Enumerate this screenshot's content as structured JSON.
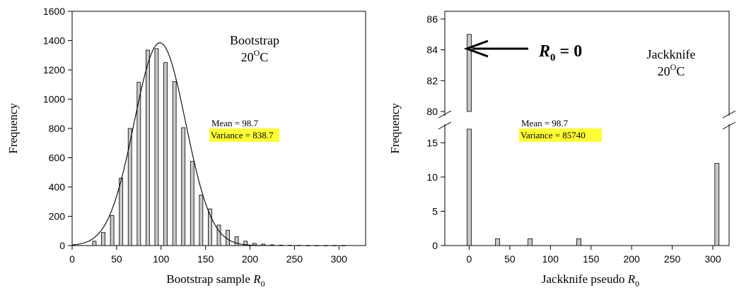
{
  "chart_data": [
    {
      "type": "bar",
      "panel": "bootstrap",
      "annotation_title": "Bootstrap",
      "annotation_temp": "20",
      "annotation_temp_sup": "O",
      "annotation_temp_unit": "C",
      "xlabel": "Bootstrap sample ",
      "xlabel_var": "R",
      "xlabel_sub": "0",
      "ylabel": "Frequency",
      "xlim": [
        0,
        330
      ],
      "ylim": [
        0,
        1600
      ],
      "xticks": [
        0,
        50,
        100,
        150,
        200,
        250,
        300
      ],
      "yticks": [
        0,
        200,
        400,
        600,
        800,
        1000,
        1200,
        1400,
        1600
      ],
      "x": [
        25,
        35,
        45,
        55,
        65,
        75,
        85,
        95,
        105,
        115,
        125,
        135,
        145,
        155,
        165,
        175,
        185,
        195,
        205,
        215,
        225,
        235,
        245,
        255,
        265,
        275,
        285,
        295,
        305
      ],
      "values": [
        30,
        90,
        205,
        460,
        800,
        1115,
        1335,
        1345,
        1250,
        1120,
        805,
        575,
        345,
        250,
        140,
        105,
        60,
        30,
        15,
        10,
        5,
        3,
        2,
        2,
        1,
        1,
        1,
        1,
        1
      ],
      "fit_curve": {
        "type": "normal",
        "mean": 98.7,
        "sd": 28.96,
        "peak": 1385
      },
      "stats": {
        "mean": "Mean = 98.7",
        "variance": "Variance = 838.7"
      }
    },
    {
      "type": "bar",
      "panel": "jackknife",
      "annotation_title": "Jackknife",
      "annotation_temp": "20",
      "annotation_temp_sup": "O",
      "annotation_temp_unit": "C",
      "arrow_label_var": "R",
      "arrow_label_sub": "0",
      "arrow_label_rest": " = 0",
      "xlabel": "Jackknife pseudo ",
      "xlabel_var": "R",
      "xlabel_sub": "0",
      "ylabel": "Frequency",
      "xlim": [
        -30,
        320
      ],
      "ylim_lower": [
        0,
        17
      ],
      "ylim_upper": [
        80,
        86.5
      ],
      "axis_break": true,
      "xticks": [
        0,
        50,
        100,
        150,
        200,
        250,
        300
      ],
      "yticks_lower": [
        0,
        5,
        10,
        15
      ],
      "yticks_upper": [
        80,
        82,
        84,
        86
      ],
      "x": [
        0,
        35,
        75,
        135,
        305
      ],
      "values": [
        85,
        1,
        1,
        1,
        12
      ],
      "stats": {
        "mean": "Mean = 98.7",
        "variance": "Variance = 85740"
      }
    }
  ]
}
